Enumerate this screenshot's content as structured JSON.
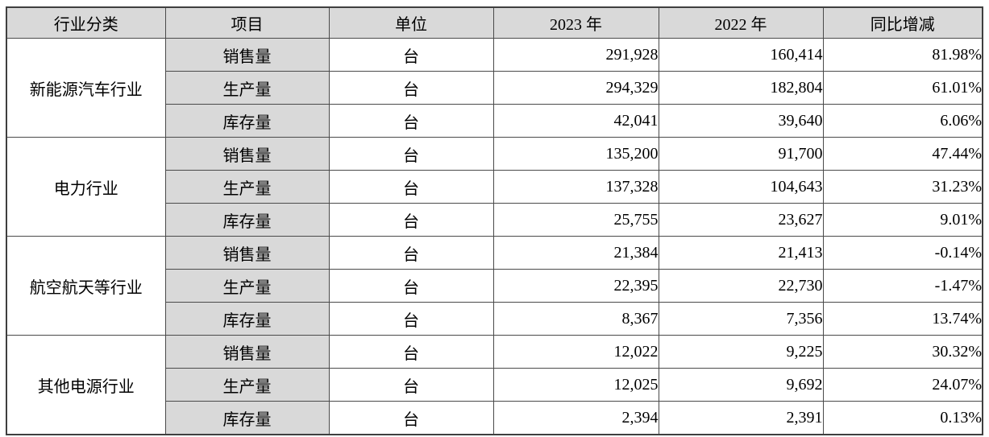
{
  "table": {
    "headers": {
      "industry": "行业分类",
      "item": "项目",
      "unit": "单位",
      "y2023": "2023 年",
      "y2022": "2022 年",
      "yoy": "同比增减"
    },
    "colors": {
      "shaded_cell_bg": "#d9d9d9",
      "cell_bg": "#ffffff",
      "border": "#4a4a4a",
      "text": "#000000"
    },
    "groups": [
      {
        "industry": "新能源汽车行业",
        "rows": [
          {
            "item": "销售量",
            "unit": "台",
            "y2023": "291,928",
            "y2022": "160,414",
            "yoy": "81.98%"
          },
          {
            "item": "生产量",
            "unit": "台",
            "y2023": "294,329",
            "y2022": "182,804",
            "yoy": "61.01%"
          },
          {
            "item": "库存量",
            "unit": "台",
            "y2023": "42,041",
            "y2022": "39,640",
            "yoy": "6.06%"
          }
        ]
      },
      {
        "industry": "电力行业",
        "rows": [
          {
            "item": "销售量",
            "unit": "台",
            "y2023": "135,200",
            "y2022": "91,700",
            "yoy": "47.44%"
          },
          {
            "item": "生产量",
            "unit": "台",
            "y2023": "137,328",
            "y2022": "104,643",
            "yoy": "31.23%"
          },
          {
            "item": "库存量",
            "unit": "台",
            "y2023": "25,755",
            "y2022": "23,627",
            "yoy": "9.01%"
          }
        ]
      },
      {
        "industry": "航空航天等行业",
        "rows": [
          {
            "item": "销售量",
            "unit": "台",
            "y2023": "21,384",
            "y2022": "21,413",
            "yoy": "-0.14%"
          },
          {
            "item": "生产量",
            "unit": "台",
            "y2023": "22,395",
            "y2022": "22,730",
            "yoy": "-1.47%"
          },
          {
            "item": "库存量",
            "unit": "台",
            "y2023": "8,367",
            "y2022": "7,356",
            "yoy": "13.74%"
          }
        ]
      },
      {
        "industry": "其他电源行业",
        "rows": [
          {
            "item": "销售量",
            "unit": "台",
            "y2023": "12,022",
            "y2022": "9,225",
            "yoy": "30.32%"
          },
          {
            "item": "生产量",
            "unit": "台",
            "y2023": "12,025",
            "y2022": "9,692",
            "yoy": "24.07%"
          },
          {
            "item": "库存量",
            "unit": "台",
            "y2023": "2,394",
            "y2022": "2,391",
            "yoy": "0.13%"
          }
        ]
      }
    ]
  }
}
